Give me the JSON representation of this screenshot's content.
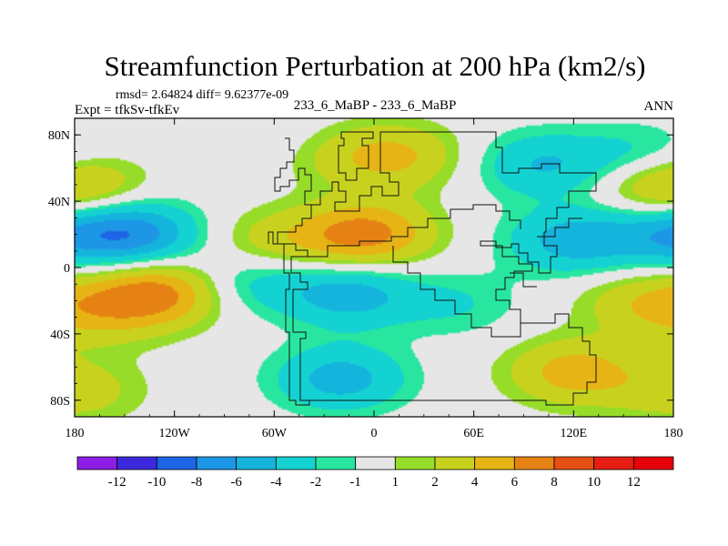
{
  "chart_data": {
    "type": "heatmap",
    "title": "Streamfunction Perturbation at 200 hPa (km2/s)",
    "stats_text": "rmsd= 2.64824 diff= 9.62377e-09",
    "left_label": "Expt = tfkSv-tfkEv",
    "center_label": "233_6_MaBP - 233_6_MaBP",
    "right_label": "ANN",
    "x_ticks": [
      {
        "value": -180,
        "label": "180"
      },
      {
        "value": -120,
        "label": "120W"
      },
      {
        "value": -60,
        "label": "60W"
      },
      {
        "value": 0,
        "label": "0"
      },
      {
        "value": 60,
        "label": "60E"
      },
      {
        "value": 120,
        "label": "120E"
      },
      {
        "value": 180,
        "label": "180"
      }
    ],
    "y_ticks": [
      {
        "value": 80,
        "label": "80N"
      },
      {
        "value": 40,
        "label": "40N"
      },
      {
        "value": 0,
        "label": "0"
      },
      {
        "value": -40,
        "label": "40S"
      },
      {
        "value": -80,
        "label": "80S"
      }
    ],
    "xlim": [
      -180,
      180
    ],
    "ylim": [
      -90,
      90
    ],
    "colorbar_labels": [
      "-12",
      "-10",
      "-8",
      "-6",
      "-4",
      "-2",
      "-1",
      "1",
      "2",
      "4",
      "6",
      "8",
      "10",
      "12"
    ],
    "colorbar_colors": [
      "#8c1ee6",
      "#3c28dc",
      "#1e64e6",
      "#1e96e6",
      "#14b4dc",
      "#14d2d2",
      "#28e6a0",
      "#e6e6e6",
      "#96dc28",
      "#c8d21e",
      "#e6b414",
      "#e68214",
      "#e65014",
      "#e61e14",
      "#e6000a"
    ],
    "centers": [
      {
        "lon": -55,
        "lat": 76,
        "val": -1
      },
      {
        "lon": 15,
        "lat": 67,
        "val": 4
      },
      {
        "lon": -25,
        "lat": 68,
        "val": 2
      },
      {
        "lon": 100,
        "lat": 62,
        "val": -4
      },
      {
        "lon": 160,
        "lat": 66,
        "val": -3
      },
      {
        "lon": -178,
        "lat": 49,
        "val": 4
      },
      {
        "lon": 168,
        "lat": 50,
        "val": 2
      },
      {
        "lon": -145,
        "lat": 20,
        "val": -7
      },
      {
        "lon": -5,
        "lat": 20,
        "val": 7
      },
      {
        "lon": -60,
        "lat": 15,
        "val": 3
      },
      {
        "lon": 120,
        "lat": 16,
        "val": -5
      },
      {
        "lon": 175,
        "lat": 20,
        "val": -4
      },
      {
        "lon": -130,
        "lat": -15,
        "val": 7
      },
      {
        "lon": -165,
        "lat": -28,
        "val": 3
      },
      {
        "lon": -15,
        "lat": -16,
        "val": -5
      },
      {
        "lon": -75,
        "lat": -8,
        "val": -3
      },
      {
        "lon": 50,
        "lat": -22,
        "val": -2
      },
      {
        "lon": 160,
        "lat": -20,
        "val": 3
      },
      {
        "lon": -20,
        "lat": -67,
        "val": -5
      },
      {
        "lon": 120,
        "lat": -63,
        "val": 5
      },
      {
        "lon": -178,
        "lat": -74,
        "val": 3
      }
    ]
  }
}
